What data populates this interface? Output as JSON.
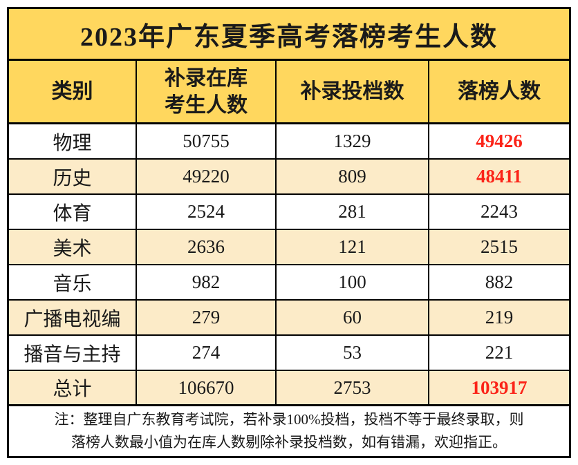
{
  "title": "2023年广东夏季高考落榜考生人数",
  "header": {
    "category": "类别",
    "in_pool_line1": "补录在库",
    "in_pool_line2": "考生人数",
    "submitted": "补录投档数",
    "failed": "落榜人数"
  },
  "rows": [
    {
      "category": "物理",
      "in_pool": "50755",
      "submitted": "1329",
      "failed": "49426",
      "failed_highlight": true
    },
    {
      "category": "历史",
      "in_pool": "49220",
      "submitted": "809",
      "failed": "48411",
      "failed_highlight": true
    },
    {
      "category": "体育",
      "in_pool": "2524",
      "submitted": "281",
      "failed": "2243",
      "failed_highlight": false
    },
    {
      "category": "美术",
      "in_pool": "2636",
      "submitted": "121",
      "failed": "2515",
      "failed_highlight": false
    },
    {
      "category": "音乐",
      "in_pool": "982",
      "submitted": "100",
      "failed": "882",
      "failed_highlight": false
    },
    {
      "category": "广播电视编",
      "in_pool": "279",
      "submitted": "60",
      "failed": "219",
      "failed_highlight": false
    },
    {
      "category": "播音与主持",
      "in_pool": "274",
      "submitted": "53",
      "failed": "221",
      "failed_highlight": false
    },
    {
      "category": "总计",
      "in_pool": "106670",
      "submitted": "2753",
      "failed": "103917",
      "failed_highlight": true
    }
  ],
  "note": {
    "line1": "注：整理自广东教育考试院，若补录100%投档，投档不等于最终录取，则",
    "line2": "落榜人数最小值为在库人数剔除补录投档数，如有错漏，欢迎指正。"
  },
  "colors": {
    "title_bg": "#FFD75E",
    "header_bg": "#FFD75E",
    "alt_row_bg": "#FCEBC8",
    "highlight_red": "#FB2318",
    "border": "#000000"
  },
  "chart_data": {
    "type": "table",
    "title": "2023年广东夏季高考落榜考生人数",
    "columns": [
      "类别",
      "补录在库考生人数",
      "补录投档数",
      "落榜人数"
    ],
    "rows": [
      [
        "物理",
        50755,
        1329,
        49426
      ],
      [
        "历史",
        49220,
        809,
        48411
      ],
      [
        "体育",
        2524,
        281,
        2243
      ],
      [
        "美术",
        2636,
        121,
        2515
      ],
      [
        "音乐",
        982,
        100,
        882
      ],
      [
        "广播电视编",
        279,
        60,
        219
      ],
      [
        "播音与主持",
        274,
        53,
        221
      ],
      [
        "总计",
        106670,
        2753,
        103917
      ]
    ],
    "highlighted_values": [
      49426,
      48411,
      103917
    ],
    "note": "注：整理自广东教育考试院，若补录100%投档，投档不等于最终录取，则落榜人数最小值为在库人数剔除补录投档数，如有错漏，欢迎指正。"
  }
}
